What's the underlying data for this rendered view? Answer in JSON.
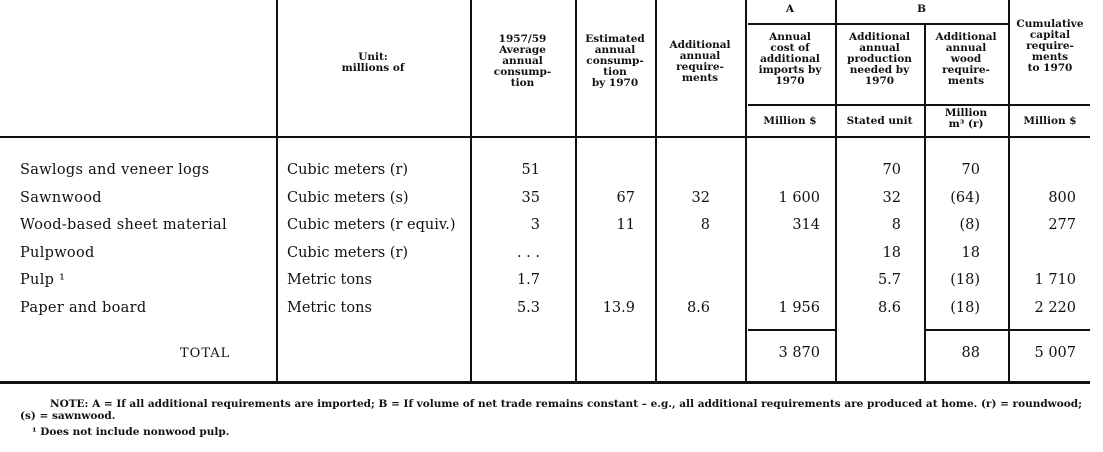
{
  "header": {
    "unit": [
      "Unit:",
      "millions of"
    ],
    "c1": [
      "1957/59",
      "Average",
      "annual",
      "consump-",
      "tion"
    ],
    "c2": [
      "Estimated",
      "annual",
      "consump-",
      "tion",
      "by 1970"
    ],
    "c3": [
      "Additional",
      "annual",
      "require-",
      "ments"
    ],
    "groupA": "A",
    "groupB": "B",
    "a1": [
      "Annual",
      "cost of",
      "additional",
      "imports by",
      "1970"
    ],
    "b1": [
      "Additional",
      "annual",
      "production",
      "needed by",
      "1970"
    ],
    "b2": [
      "Additional",
      "annual",
      "wood",
      "require-",
      "ments"
    ],
    "cum": [
      "Cumulative",
      "capital",
      "require-",
      "ments",
      "to 1970"
    ],
    "units": {
      "a1": "Million $",
      "b1": "Stated unit",
      "b2": [
        "Million",
        "m³ (r)"
      ],
      "cum": "Million $"
    }
  },
  "rows": [
    {
      "label": "Sawlogs and veneer logs",
      "unit": "Cubic meters (r)",
      "c1": "51",
      "c2": "",
      "c3": "",
      "a1": "",
      "b1": "70",
      "b2": "70",
      "cum": ""
    },
    {
      "label": "Sawnwood",
      "unit": "Cubic meters (s)",
      "c1": "35",
      "c2": "67",
      "c3": "32",
      "a1": "1 600",
      "b1": "32",
      "b2": "(64)",
      "cum": "800"
    },
    {
      "label": "Wood-based sheet material",
      "unit": "Cubic meters (r equiv.)",
      "c1": "3",
      "c2": "11",
      "c3": "8",
      "a1": "314",
      "b1": "8",
      "b2": "(8)",
      "cum": "277"
    },
    {
      "label": "Pulpwood",
      "unit": "Cubic meters (r)",
      "c1": ". . .",
      "c2": "",
      "c3": "",
      "a1": "",
      "b1": "18",
      "b2": "18",
      "cum": ""
    },
    {
      "label": "Pulp ¹",
      "unit": "Metric tons",
      "c1": "1.7",
      "c2": "",
      "c3": "",
      "a1": "",
      "b1": "5.7",
      "b2": "(18)",
      "cum": "1 710"
    },
    {
      "label": "Paper and board",
      "unit": "Metric tons",
      "c1": "5.3",
      "c2": "13.9",
      "c3": "8.6",
      "a1": "1 956",
      "b1": "8.6",
      "b2": "(18)",
      "cum": "2 220"
    }
  ],
  "total": {
    "label": "TOTAL",
    "a1": "3 870",
    "b2": "88",
    "cum": "5 007"
  },
  "notes": [
    "NOTE: A = If all additional requirements are imported; B = If volume of net trade remains constant – e.g., all additional requirements are produced at home. (r) = roundwood; (s) = sawnwood.",
    "¹ Does not include nonwood pulp."
  ]
}
